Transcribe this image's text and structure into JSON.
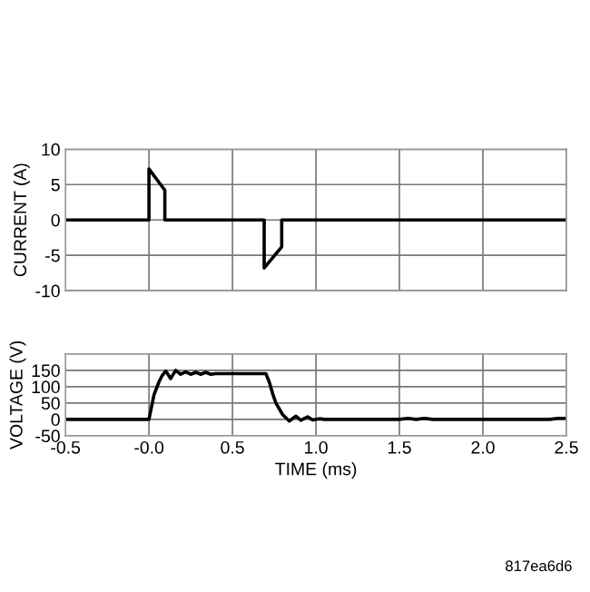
{
  "chart_data": [
    {
      "type": "line",
      "ylabel": "CURRENT (A)",
      "tick_labels": "y",
      "grid": true,
      "marker": "none",
      "line_style": "solid",
      "xlim": [
        -0.5,
        2.5
      ],
      "ylim": [
        -10,
        10
      ],
      "xticks": [
        -0.5,
        0.0,
        0.5,
        1.0,
        1.5,
        2.0,
        2.5
      ],
      "yticks": [
        -10,
        -5,
        0,
        5,
        10
      ],
      "series": [
        {
          "color": "#000000",
          "x": [
            -0.5,
            0.0,
            0.0,
            0.095,
            0.095,
            0.69,
            0.69,
            0.795,
            0.795,
            2.5
          ],
          "values": [
            0,
            0,
            7.2,
            4.2,
            0,
            0,
            -6.8,
            -3.8,
            0,
            0
          ]
        }
      ]
    },
    {
      "type": "line",
      "xlabel": "TIME (ms)",
      "ylabel": "VOLTAGE (V)",
      "grid": true,
      "marker": "none",
      "line_style": "solid",
      "xlim": [
        -0.5,
        2.5
      ],
      "ylim": [
        -50,
        200
      ],
      "xticks": [
        {
          "value": -0.5,
          "label": "-0.5"
        },
        {
          "value": 0.0,
          "label": "-0.0"
        },
        {
          "value": 0.5,
          "label": "0.5"
        },
        {
          "value": 1.0,
          "label": "1.0"
        },
        {
          "value": 1.5,
          "label": "1.5"
        },
        {
          "value": 2.0,
          "label": "2.0"
        },
        {
          "value": 2.5,
          "label": "2.5"
        }
      ],
      "yticks": [
        -50,
        0,
        50,
        100,
        150
      ],
      "annotations": [
        "817ea6d6"
      ],
      "series": [
        {
          "color": "#000000",
          "x": [
            -0.5,
            0.0,
            0.03,
            0.06,
            0.08,
            0.1,
            0.13,
            0.16,
            0.19,
            0.22,
            0.25,
            0.28,
            0.31,
            0.34,
            0.37,
            0.4,
            0.7,
            0.72,
            0.74,
            0.76,
            0.8,
            0.84,
            0.88,
            0.91,
            0.95,
            0.98,
            1.02,
            1.05,
            1.5,
            1.55,
            1.6,
            1.65,
            1.7,
            2.4,
            2.45,
            2.5
          ],
          "values": [
            0,
            0,
            75,
            115,
            135,
            148,
            125,
            150,
            138,
            145,
            138,
            144,
            138,
            144,
            138,
            140,
            140,
            115,
            80,
            50,
            15,
            -5,
            10,
            -3,
            8,
            -2,
            2,
            0,
            0,
            3,
            0,
            3,
            0,
            0,
            3,
            3
          ]
        }
      ]
    }
  ]
}
